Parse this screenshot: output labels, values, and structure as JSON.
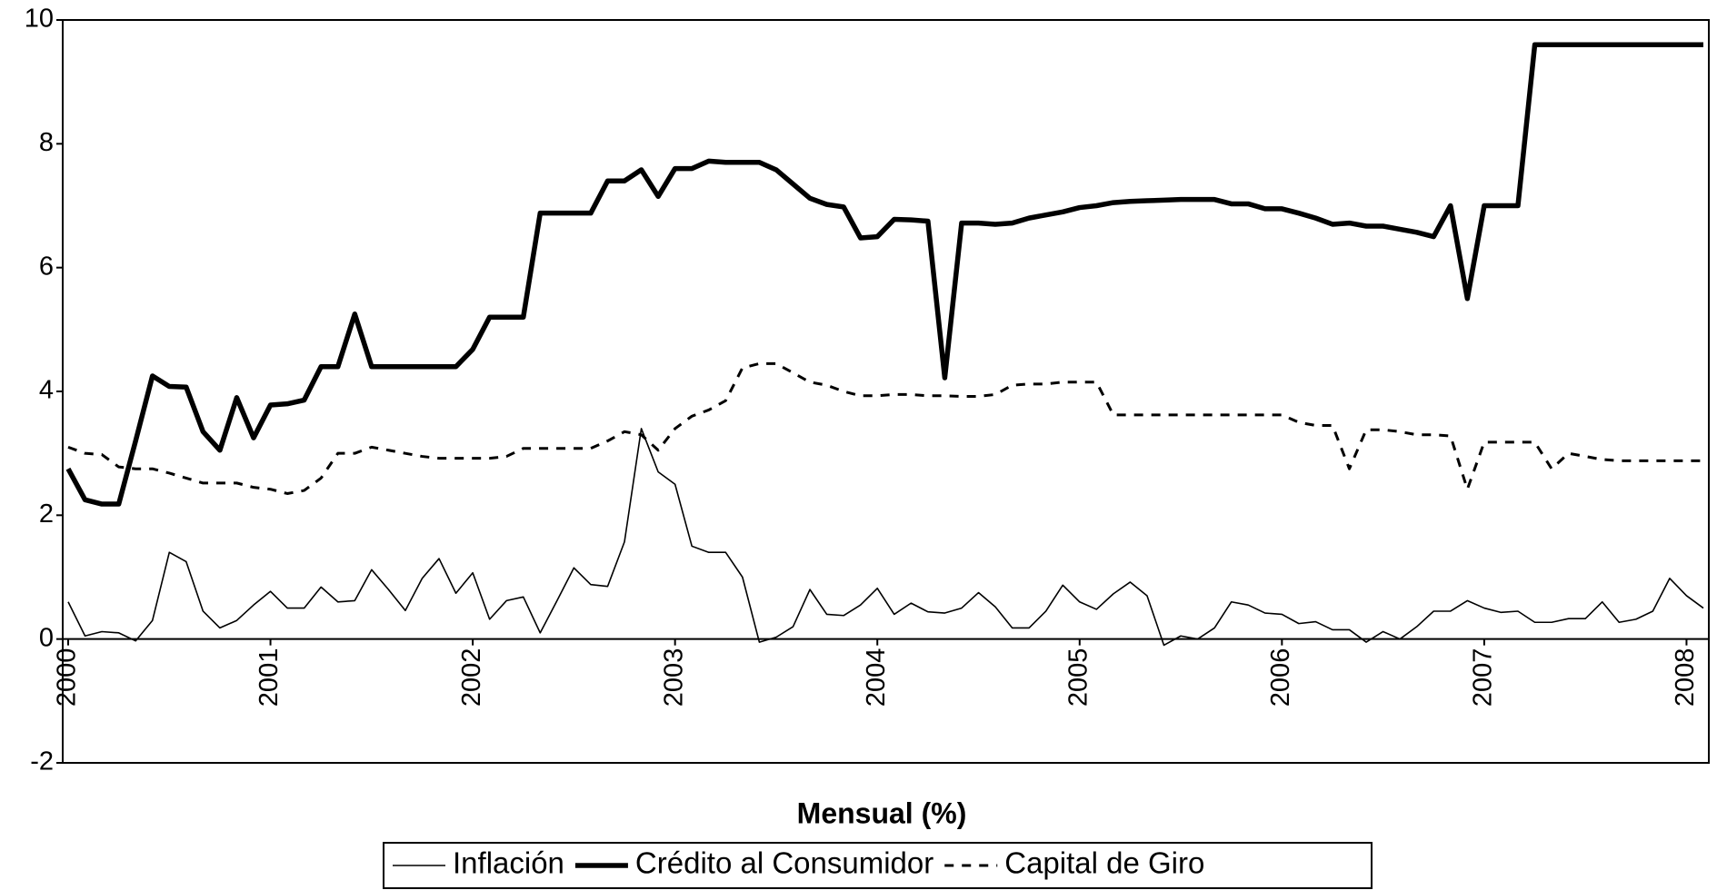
{
  "chart_data": {
    "type": "line",
    "title": "Mensual (%)",
    "categories": [
      "2000",
      null,
      null,
      null,
      null,
      null,
      null,
      null,
      null,
      null,
      null,
      null,
      "2001",
      null,
      null,
      null,
      null,
      null,
      null,
      null,
      null,
      null,
      null,
      null,
      "2002",
      null,
      null,
      null,
      null,
      null,
      null,
      null,
      null,
      null,
      null,
      null,
      "2003",
      null,
      null,
      null,
      null,
      null,
      null,
      null,
      null,
      null,
      null,
      null,
      "2004",
      null,
      null,
      null,
      null,
      null,
      null,
      null,
      null,
      null,
      null,
      null,
      "2005",
      null,
      null,
      null,
      null,
      null,
      null,
      null,
      null,
      null,
      null,
      null,
      "2006",
      null,
      null,
      null,
      null,
      null,
      null,
      null,
      null,
      null,
      null,
      null,
      "2007",
      null,
      null,
      null,
      null,
      null,
      null,
      null,
      null,
      null,
      null,
      null,
      "2008",
      null
    ],
    "series": [
      {
        "name": "Inflación",
        "color": "#000000",
        "values": [
          0.6,
          0.05,
          0.12,
          0.1,
          -0.03,
          0.3,
          1.4,
          1.25,
          0.45,
          0.18,
          0.3,
          0.55,
          0.77,
          0.5,
          0.5,
          0.84,
          0.6,
          0.62,
          1.12,
          0.8,
          0.46,
          0.98,
          1.3,
          0.74,
          1.07,
          0.32,
          0.62,
          0.68,
          0.1,
          0.62,
          1.15,
          0.88,
          0.85,
          1.57,
          3.4,
          2.7,
          2.5,
          1.5,
          1.4,
          1.4,
          1.0,
          -0.05,
          0.03,
          0.2,
          0.8,
          0.4,
          0.38,
          0.55,
          0.82,
          0.4,
          0.58,
          0.44,
          0.42,
          0.5,
          0.75,
          0.52,
          0.18,
          0.18,
          0.45,
          0.87,
          0.6,
          0.48,
          0.73,
          0.92,
          0.7,
          -0.1,
          0.05,
          0.0,
          0.18,
          0.6,
          0.55,
          0.42,
          0.4,
          0.25,
          0.28,
          0.15,
          0.15,
          -0.05,
          0.12,
          0.0,
          0.2,
          0.45,
          0.45,
          0.62,
          0.5,
          0.43,
          0.45,
          0.27,
          0.27,
          0.33,
          0.33,
          0.6,
          0.27,
          0.32,
          0.45,
          0.98,
          0.7,
          0.5
        ]
      },
      {
        "name": "Crédito al Consumidor",
        "color": "#000000",
        "values": [
          2.75,
          2.25,
          2.18,
          2.18,
          3.2,
          4.25,
          4.08,
          4.07,
          3.35,
          3.05,
          3.9,
          3.25,
          3.78,
          3.8,
          3.86,
          4.4,
          4.4,
          5.25,
          4.4,
          4.4,
          4.4,
          4.4,
          4.4,
          4.4,
          4.68,
          5.2,
          5.2,
          5.2,
          6.88,
          6.88,
          6.88,
          6.88,
          7.4,
          7.4,
          7.58,
          7.15,
          7.6,
          7.6,
          7.72,
          7.7,
          7.7,
          7.7,
          7.58,
          7.35,
          7.12,
          7.02,
          6.98,
          6.48,
          6.5,
          6.78,
          6.77,
          6.75,
          4.22,
          6.72,
          6.72,
          6.7,
          6.72,
          6.8,
          6.85,
          6.9,
          6.97,
          7.0,
          7.05,
          7.07,
          7.08,
          7.09,
          7.1,
          7.1,
          7.1,
          7.03,
          7.03,
          6.95,
          6.95,
          6.88,
          6.8,
          6.7,
          6.72,
          6.67,
          6.67,
          6.62,
          6.57,
          6.5,
          7.0,
          5.5,
          7.0,
          7.0,
          7.0,
          9.6,
          9.6,
          9.6,
          9.6,
          9.6,
          9.6,
          9.6,
          9.6,
          9.6,
          9.6,
          9.6
        ]
      },
      {
        "name": "Capital de Giro",
        "color": "#000000",
        "values": [
          3.1,
          3.0,
          2.98,
          2.78,
          2.75,
          2.75,
          2.68,
          2.6,
          2.52,
          2.52,
          2.52,
          2.45,
          2.42,
          2.35,
          2.4,
          2.6,
          3.0,
          3.0,
          3.1,
          3.05,
          3.0,
          2.95,
          2.92,
          2.92,
          2.92,
          2.92,
          2.95,
          3.08,
          3.08,
          3.08,
          3.08,
          3.08,
          3.2,
          3.35,
          3.3,
          3.05,
          3.4,
          3.6,
          3.7,
          3.85,
          4.38,
          4.45,
          4.45,
          4.3,
          4.15,
          4.1,
          4.0,
          3.93,
          3.93,
          3.95,
          3.95,
          3.93,
          3.93,
          3.92,
          3.92,
          3.95,
          4.1,
          4.12,
          4.12,
          4.15,
          4.15,
          4.15,
          3.62,
          3.62,
          3.62,
          3.62,
          3.62,
          3.62,
          3.62,
          3.62,
          3.62,
          3.62,
          3.62,
          3.5,
          3.45,
          3.45,
          2.75,
          3.38,
          3.38,
          3.35,
          3.3,
          3.3,
          3.28,
          2.42,
          3.18,
          3.18,
          3.18,
          3.18,
          2.75,
          3.0,
          2.95,
          2.9,
          2.88,
          2.88,
          2.88,
          2.88,
          2.88,
          2.88
        ]
      }
    ],
    "ylim": [
      -2,
      10
    ],
    "yticks": [
      -2,
      0,
      2,
      4,
      6,
      8,
      10
    ],
    "grid": false,
    "legend": "bottom"
  }
}
